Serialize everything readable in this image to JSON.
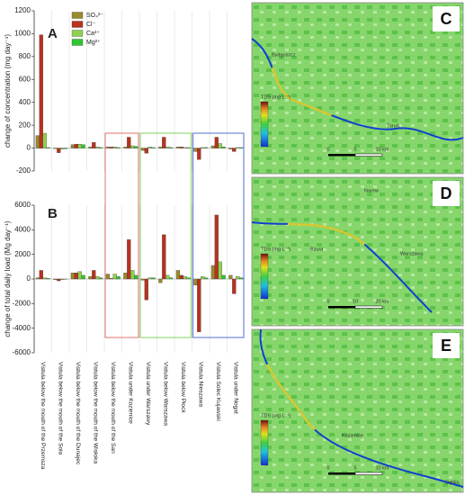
{
  "chart_data": [
    {
      "type": "bar",
      "panel": "A",
      "ylabel": "change of concentration (mg day⁻¹)",
      "categories": [
        "Vistula below the mouth of the Przemsza",
        "Vistula below the mouth of the Soła",
        "Vistula below the mouth of the Dunajec",
        "Vistula below the mouth of the Wisłoka",
        "Vistula below the mouth of the San",
        "Vistula under Kozienice",
        "Vistula under Warszawy",
        "Vistula below Warszawa",
        "Vistula below Płock",
        "Vistula Nieszawa",
        "Vistula Solec Kujawski",
        "Vistula under Nogat"
      ],
      "series": [
        {
          "name": "SO₄²⁻",
          "color": "#9b8a2c",
          "values": [
            110,
            -5,
            30,
            10,
            10,
            10,
            -20,
            10,
            10,
            -30,
            20,
            -10
          ]
        },
        {
          "name": "Cl⁻",
          "color": "#b8321f",
          "values": [
            990,
            -40,
            35,
            50,
            10,
            95,
            -45,
            95,
            10,
            -100,
            95,
            -30
          ]
        },
        {
          "name": "Ca²⁺",
          "color": "#8fd14f",
          "values": [
            130,
            -10,
            35,
            10,
            10,
            20,
            10,
            10,
            5,
            5,
            40,
            5
          ]
        },
        {
          "name": "Mg²⁺",
          "color": "#2fc62f",
          "values": [
            5,
            -5,
            30,
            5,
            5,
            15,
            5,
            5,
            5,
            5,
            10,
            5
          ]
        }
      ],
      "ylim": [
        -200,
        1200
      ],
      "yticks": [
        -200,
        0,
        200,
        400,
        600,
        800,
        1000,
        1200
      ],
      "legend": "top-left"
    },
    {
      "type": "bar",
      "panel": "B",
      "ylabel": "change of total daily load (Mg day⁻¹)",
      "series": [
        {
          "color": "#9b8a2c",
          "values": [
            100,
            -50,
            500,
            200,
            400,
            500,
            -100,
            -300,
            700,
            -500,
            1100,
            300
          ]
        },
        {
          "color": "#b8321f",
          "values": [
            700,
            -150,
            500,
            700,
            50,
            3200,
            -1700,
            3600,
            300,
            -4300,
            5200,
            -1200
          ]
        },
        {
          "color": "#8fd14f",
          "values": [
            100,
            -50,
            600,
            200,
            400,
            700,
            100,
            300,
            200,
            200,
            1400,
            200
          ]
        },
        {
          "color": "#2fc62f",
          "values": [
            50,
            -20,
            300,
            100,
            200,
            300,
            100,
            100,
            100,
            100,
            300,
            100
          ]
        }
      ],
      "ylim": [
        -6000,
        6000
      ],
      "yticks": [
        -6000,
        -4000,
        -2000,
        0,
        2000,
        4000,
        6000
      ]
    }
  ],
  "maps": [
    {
      "label": "C",
      "places": [
        "Bydgoszcz",
        "Toruń"
      ],
      "legend_title": "TDS (mg L⁻¹)",
      "scale": [
        "0",
        "5",
        "10 km"
      ]
    },
    {
      "label": "D",
      "places": [
        "Warszawa",
        "Narew",
        "Bzura"
      ],
      "legend_title": "TDS (mg L⁻¹)",
      "scale": [
        "0",
        "10",
        "20 km"
      ]
    },
    {
      "label": "E",
      "places": [
        "Kozienice",
        "Dęblin"
      ],
      "legend_title": "TDS (mg L⁻¹)",
      "scale": [
        "0",
        "5",
        "10 km"
      ]
    }
  ]
}
